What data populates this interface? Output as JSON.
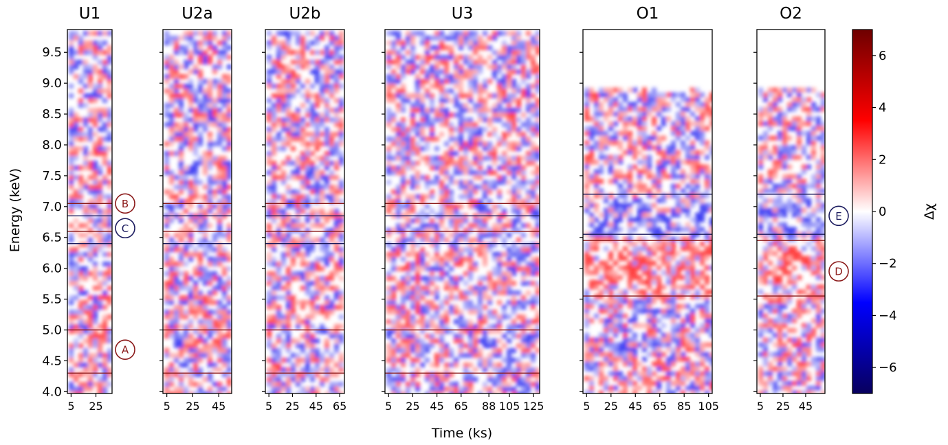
{
  "chart_data": {
    "type": "heatmap",
    "ylabel": "Energy (keV)",
    "xlabel": "Time (ks)",
    "ylim": [
      3.97,
      9.87
    ],
    "yticks": [
      4.0,
      4.5,
      5.0,
      5.5,
      6.0,
      6.5,
      7.0,
      7.5,
      8.0,
      8.5,
      9.0,
      9.5
    ],
    "yticklabels": [
      "4.0",
      "4.5",
      "5.0",
      "5.5",
      "6.0",
      "6.5",
      "7.0",
      "7.5",
      "8.0",
      "8.5",
      "9.0",
      "9.5"
    ],
    "colorbar": {
      "label": "Δχ",
      "range": [
        -7,
        7
      ],
      "ticks": [
        -6,
        -4,
        -2,
        0,
        2,
        4,
        6
      ],
      "ticklabels": [
        "−6",
        "−4",
        "−2",
        "0",
        "2",
        "4",
        "6"
      ],
      "colors": [
        "#08005e",
        "#0000ff",
        "#ffffff",
        "#ff0000",
        "#6e0000"
      ]
    },
    "panels": [
      {
        "name": "U1",
        "xlim": [
          2,
          38
        ],
        "xticks": [
          5,
          25
        ],
        "xticklabels": [
          "5",
          "25"
        ],
        "ymax_data": 9.87,
        "seed": 11,
        "lines": [
          {
            "y": 7.05,
            "color": "#8b1a1a"
          },
          {
            "y": 6.85,
            "color": "#1a1a5e"
          },
          {
            "y": 6.6,
            "color": "#8b1a1a"
          },
          {
            "y": 6.4,
            "color": "#1a1a5e"
          },
          {
            "y": 5.0,
            "color": "#8b1a1a"
          },
          {
            "y": 4.3,
            "color": "#8b1a1a"
          }
        ]
      },
      {
        "name": "U2a",
        "xlim": [
          2,
          55
        ],
        "xticks": [
          5,
          25,
          45
        ],
        "xticklabels": [
          "5",
          "25",
          "45"
        ],
        "ymax_data": 9.87,
        "seed": 23,
        "lines": [
          {
            "y": 7.05,
            "color": "#8b1a1a"
          },
          {
            "y": 6.85,
            "color": "#1a1a5e"
          },
          {
            "y": 6.6,
            "color": "#8b1a1a"
          },
          {
            "y": 6.4,
            "color": "#1a1a5e"
          },
          {
            "y": 5.0,
            "color": "#8b1a1a"
          },
          {
            "y": 4.3,
            "color": "#8b1a1a"
          }
        ]
      },
      {
        "name": "U2b",
        "xlim": [
          2,
          69
        ],
        "xticks": [
          5,
          25,
          45,
          65
        ],
        "xticklabels": [
          "5",
          "25",
          "45",
          "65"
        ],
        "ymax_data": 9.87,
        "seed": 37,
        "lines": [
          {
            "y": 7.05,
            "color": "#8b1a1a"
          },
          {
            "y": 6.85,
            "color": "#1a1a5e"
          },
          {
            "y": 6.6,
            "color": "#8b1a1a"
          },
          {
            "y": 6.4,
            "color": "#1a1a5e"
          },
          {
            "y": 5.0,
            "color": "#8b1a1a"
          },
          {
            "y": 4.3,
            "color": "#8b1a1a"
          }
        ]
      },
      {
        "name": "U3",
        "xlim": [
          2,
          130
        ],
        "xticks": [
          5,
          25,
          45,
          65,
          88,
          105,
          125
        ],
        "xticklabels": [
          "5",
          "25",
          "45",
          "65",
          "88",
          "105",
          "125"
        ],
        "ymax_data": 9.87,
        "seed": 53,
        "lines": [
          {
            "y": 7.05,
            "color": "#8b1a1a"
          },
          {
            "y": 6.85,
            "color": "#1a1a5e"
          },
          {
            "y": 6.6,
            "color": "#8b1a1a"
          },
          {
            "y": 6.4,
            "color": "#1a1a5e"
          },
          {
            "y": 5.0,
            "color": "#8b1a1a"
          },
          {
            "y": 4.3,
            "color": "#8b1a1a"
          }
        ]
      },
      {
        "name": "O1",
        "xlim": [
          2,
          108
        ],
        "xticks": [
          5,
          25,
          45,
          65,
          85,
          105
        ],
        "xticklabels": [
          "5",
          "25",
          "45",
          "65",
          "85",
          "105"
        ],
        "ymax_data": 8.95,
        "seed": 71,
        "lines": [
          {
            "y": 7.2,
            "color": "#1a1a5e"
          },
          {
            "y": 6.55,
            "color": "#1a1a5e"
          },
          {
            "y": 6.45,
            "color": "#8b1a1a"
          },
          {
            "y": 5.55,
            "color": "#8b1a1a"
          }
        ]
      },
      {
        "name": "O2",
        "xlim": [
          2,
          62
        ],
        "xticks": [
          5,
          25,
          45
        ],
        "xticklabels": [
          "5",
          "25",
          "45"
        ],
        "ymax_data": 8.95,
        "seed": 89,
        "lines": [
          {
            "y": 7.2,
            "color": "#1a1a5e"
          },
          {
            "y": 6.55,
            "color": "#1a1a5e"
          },
          {
            "y": 6.45,
            "color": "#8b1a1a"
          },
          {
            "y": 5.55,
            "color": "#8b1a1a"
          }
        ]
      }
    ],
    "annotations": [
      {
        "label": "A",
        "panel": "U1",
        "y": 4.68,
        "color": "#8b1a1a"
      },
      {
        "label": "B",
        "panel": "U1",
        "y": 7.05,
        "color": "#8b1a1a"
      },
      {
        "label": "C",
        "panel": "U1",
        "y": 6.65,
        "color": "#1a1a5e"
      },
      {
        "label": "D",
        "panel": "O2",
        "y": 5.95,
        "color": "#8b1a1a"
      },
      {
        "label": "E",
        "panel": "O2",
        "y": 6.85,
        "color": "#1a1a5e"
      }
    ]
  }
}
